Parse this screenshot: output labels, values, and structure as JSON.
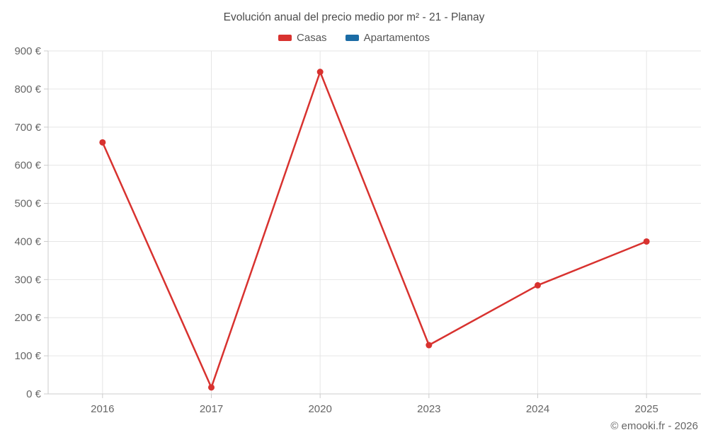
{
  "title": "Evolución anual del precio medio por m² - 21 - Planay",
  "footer": "© emooki.fr - 2026",
  "colors": {
    "casas": "#d8322f",
    "apartamentos": "#1b6ca5",
    "grid": "#e6e6e6",
    "axis": "#cccccc",
    "tick_text": "#666666",
    "title_text": "#4c4c4c"
  },
  "legend": [
    {
      "label": "Casas"
    },
    {
      "label": "Apartamentos"
    }
  ],
  "chart_data": {
    "type": "line",
    "categories": [
      "2016",
      "2017",
      "2020",
      "2023",
      "2024",
      "2025"
    ],
    "series": [
      {
        "name": "Casas",
        "color": "#d8322f",
        "values": [
          660,
          17,
          845,
          128,
          285,
          400
        ]
      },
      {
        "name": "Apartamentos",
        "color": "#1b6ca5",
        "values": []
      }
    ],
    "title": "Evolución anual del precio medio por m² - 21 - Planay",
    "xlabel": "",
    "ylabel": "",
    "ylim": [
      0,
      900
    ],
    "ytick_step": 100,
    "ytick_suffix": " €",
    "grid": true,
    "legend_position": "top"
  }
}
